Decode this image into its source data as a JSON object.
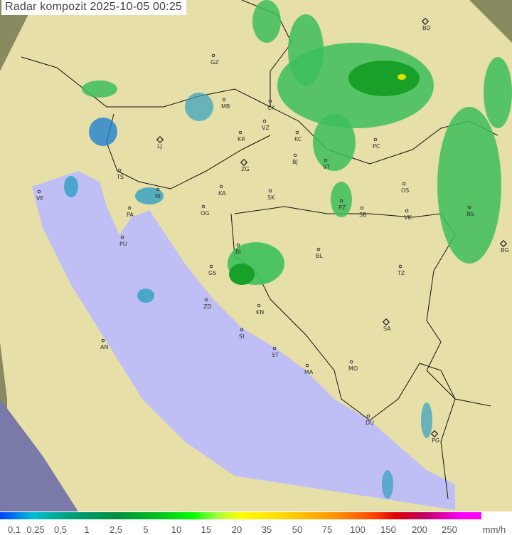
{
  "title": "Radar kompozit  2025-10-05   00:25",
  "legend": {
    "unit": "mm/h",
    "ticks": [
      "0,1",
      "0,25",
      "0,5",
      "1",
      "2,5",
      "5",
      "10",
      "15",
      "20",
      "35",
      "50",
      "75",
      "100",
      "150",
      "200",
      "250"
    ]
  },
  "colors": {
    "sea": "#bfbff5",
    "land": "#e6dfa8",
    "out_of_range": "#8a8a60",
    "radar_light": "#3cc05a",
    "radar_dark": "#18a028"
  },
  "cities": [
    {
      "code": "GZ",
      "capital": false
    },
    {
      "code": "MB",
      "capital": false
    },
    {
      "code": "CK",
      "capital": false
    },
    {
      "code": "VZ",
      "capital": false
    },
    {
      "code": "KR",
      "capital": false
    },
    {
      "code": "KC",
      "capital": false
    },
    {
      "code": "BD",
      "capital": true
    },
    {
      "code": "PC",
      "capital": false
    },
    {
      "code": "LJ",
      "capital": true
    },
    {
      "code": "TS",
      "capital": false
    },
    {
      "code": "ZG",
      "capital": true
    },
    {
      "code": "BJ",
      "capital": false
    },
    {
      "code": "VT",
      "capital": false
    },
    {
      "code": "VE",
      "capital": false
    },
    {
      "code": "RI",
      "capital": false
    },
    {
      "code": "KA",
      "capital": false
    },
    {
      "code": "SK",
      "capital": false
    },
    {
      "code": "OS",
      "capital": false
    },
    {
      "code": "PA",
      "capital": false
    },
    {
      "code": "OG",
      "capital": false
    },
    {
      "code": "PZ",
      "capital": false
    },
    {
      "code": "SB",
      "capital": false
    },
    {
      "code": "VK",
      "capital": false
    },
    {
      "code": "NS",
      "capital": false
    },
    {
      "code": "PU",
      "capital": false
    },
    {
      "code": "BL",
      "capital": false
    },
    {
      "code": "BG",
      "capital": true
    },
    {
      "code": "BI",
      "capital": false
    },
    {
      "code": "GS",
      "capital": false
    },
    {
      "code": "TZ",
      "capital": false
    },
    {
      "code": "ZD",
      "capital": false
    },
    {
      "code": "KN",
      "capital": false
    },
    {
      "code": "SA",
      "capital": true
    },
    {
      "code": "SI",
      "capital": false
    },
    {
      "code": "AN",
      "capital": false
    },
    {
      "code": "ST",
      "capital": false
    },
    {
      "code": "MO",
      "capital": false
    },
    {
      "code": "MA",
      "capital": false
    },
    {
      "code": "DU",
      "capital": false
    },
    {
      "code": "PG",
      "capital": true
    }
  ]
}
